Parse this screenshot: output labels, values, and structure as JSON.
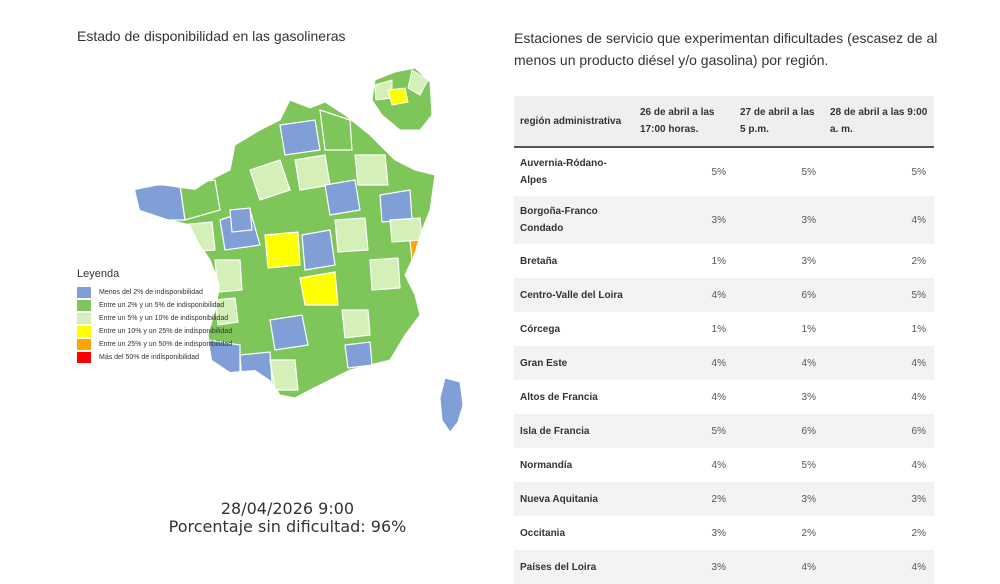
{
  "left_title": "Estado de disponibilidad en las gasolineras",
  "right_title": "Estaciones de servicio que experimentan dificultades (escasez de al menos un producto diésel y/o gasolina) por región.",
  "map": {
    "date": "28/04/2026 9:00",
    "percent_text": "Porcentaje sin dificultad: 96%"
  },
  "legend": {
    "title": "Leyenda",
    "items": [
      {
        "label": "Menos del 2% de indisponibilidad",
        "color": "#7f9fd6"
      },
      {
        "label": "Entre un 2% y un 5% de indisponibilidad",
        "color": "#7ec65a"
      },
      {
        "label": "Entre un 5% y un 10% de indisponibilidad",
        "color": "#d4efb8"
      },
      {
        "label": "Entre un 10% y un 25% de indisponibilidad",
        "color": "#ffff00"
      },
      {
        "label": "Entre un 25% y un 50% de indisponibilidad",
        "color": "#ffa500"
      },
      {
        "label": "Más del 50% de indisponibilidad",
        "color": "#ff0000"
      }
    ]
  },
  "chart_data": {
    "type": "table",
    "columns": [
      "región administrativa",
      "26 de abril a las 17:00 horas.",
      "27 de abril a las 5 p.m.",
      "28 de abril a las 9:00 a. m."
    ],
    "rows": [
      [
        "Auvernia-Ródano-Alpes",
        "5%",
        "5%",
        "5%"
      ],
      [
        "Borgoña-Franco Condado",
        "3%",
        "3%",
        "4%"
      ],
      [
        "Bretaña",
        "1%",
        "3%",
        "2%"
      ],
      [
        "Centro-Valle del Loira",
        "4%",
        "6%",
        "5%"
      ],
      [
        "Córcega",
        "1%",
        "1%",
        "1%"
      ],
      [
        "Gran Este",
        "4%",
        "4%",
        "4%"
      ],
      [
        "Altos de Francia",
        "4%",
        "3%",
        "4%"
      ],
      [
        "Isla de Francia",
        "5%",
        "6%",
        "6%"
      ],
      [
        "Normandía",
        "4%",
        "5%",
        "4%"
      ],
      [
        "Nueva Aquitania",
        "2%",
        "3%",
        "3%"
      ],
      [
        "Occitania",
        "3%",
        "2%",
        "2%"
      ],
      [
        "Países del Loira",
        "3%",
        "4%",
        "4%"
      ]
    ]
  }
}
